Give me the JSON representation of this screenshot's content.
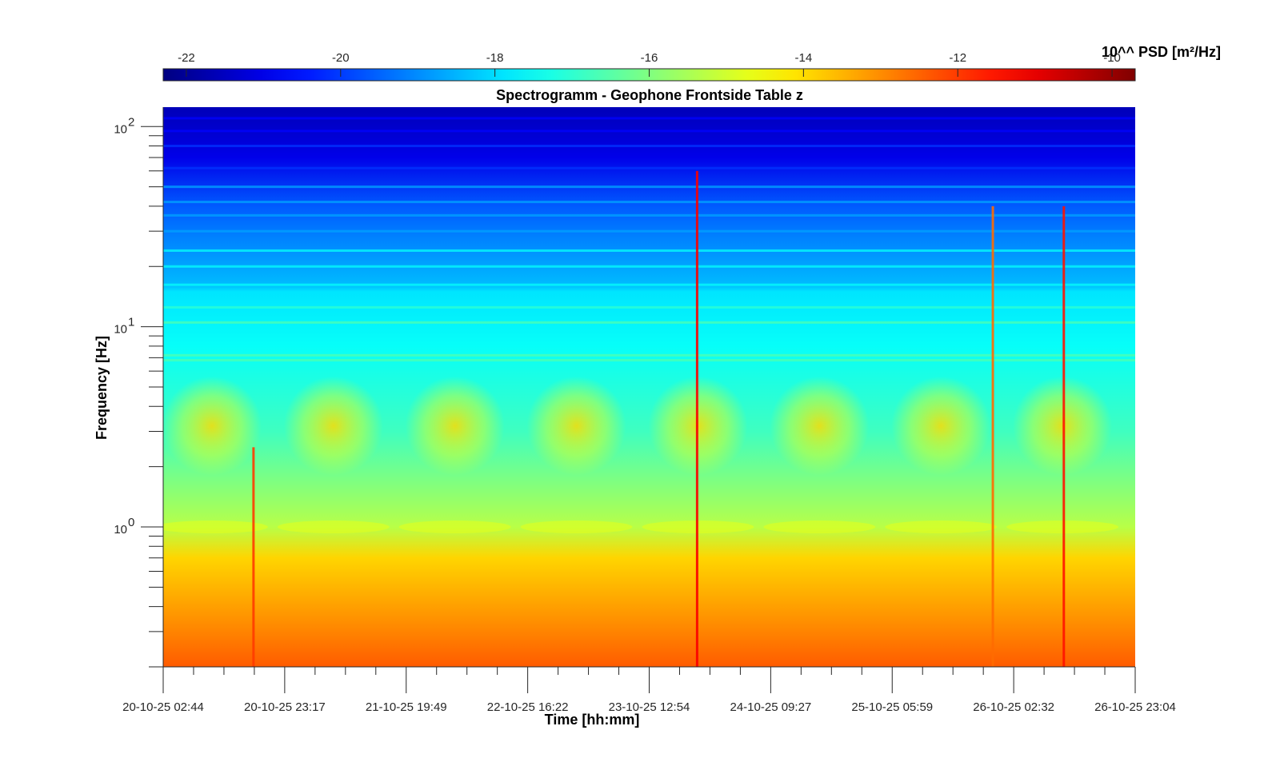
{
  "chart_data": {
    "type": "heatmap",
    "title": "Spectrogramm - Geophone Frontside Table z",
    "xlabel": "Time [hh:mm]",
    "ylabel": "Frequency [Hz]",
    "y_scale": "log",
    "ylim": [
      0.2,
      125
    ],
    "x_tick_labels": [
      "20-10-25 02:44",
      "20-10-25 23:17",
      "21-10-25 19:49",
      "22-10-25 16:22",
      "23-10-25 12:54",
      "24-10-25 09:27",
      "25-10-25 05:59",
      "26-10-25 02:32",
      "26-10-25 23:04"
    ],
    "y_tick_labels": [
      {
        "base": "10",
        "exp": "2",
        "value": 100
      },
      {
        "base": "10",
        "exp": "1",
        "value": 10
      },
      {
        "base": "10",
        "exp": "0",
        "value": 1
      }
    ],
    "colorbar": {
      "label": "10^^ PSD [m²/Hz]",
      "colormap": "jet",
      "range": [
        -22.3,
        -9.7
      ],
      "ticks": [
        -22,
        -20,
        -18,
        -16,
        -14,
        -12,
        -10
      ],
      "tick_labels": [
        "-22",
        "-20",
        "-18",
        "-16",
        "-14",
        "-12",
        "-10"
      ]
    },
    "spectral_profile": [
      {
        "f": 125,
        "log_psd": -21.6
      },
      {
        "f": 70,
        "log_psd": -21.0
      },
      {
        "f": 40,
        "log_psd": -19.6
      },
      {
        "f": 16,
        "log_psd": -18.4
      },
      {
        "f": 15,
        "log_psd": -17.9
      },
      {
        "f": 8,
        "log_psd": -17.5
      },
      {
        "f": 3,
        "log_psd": -16.8
      },
      {
        "f": 1,
        "log_psd": -15.3
      },
      {
        "f": 0.7,
        "log_psd": -13.9
      },
      {
        "f": 0.3,
        "log_psd": -12.9
      },
      {
        "f": 0.2,
        "log_psd": -12.4
      }
    ],
    "transient_events": [
      {
        "time": "20-10-25 18:00",
        "f_top": 2.5,
        "log_psd_peak": -12.0
      },
      {
        "time": "23-10-25 21:00",
        "f_top": 60,
        "log_psd_peak": -11.2
      },
      {
        "time": "25-10-25 23:00",
        "f_top": 40,
        "log_psd_peak": -12.6
      },
      {
        "time": "26-10-25 11:00",
        "f_top": 40,
        "log_psd_peak": -11.5
      }
    ]
  }
}
